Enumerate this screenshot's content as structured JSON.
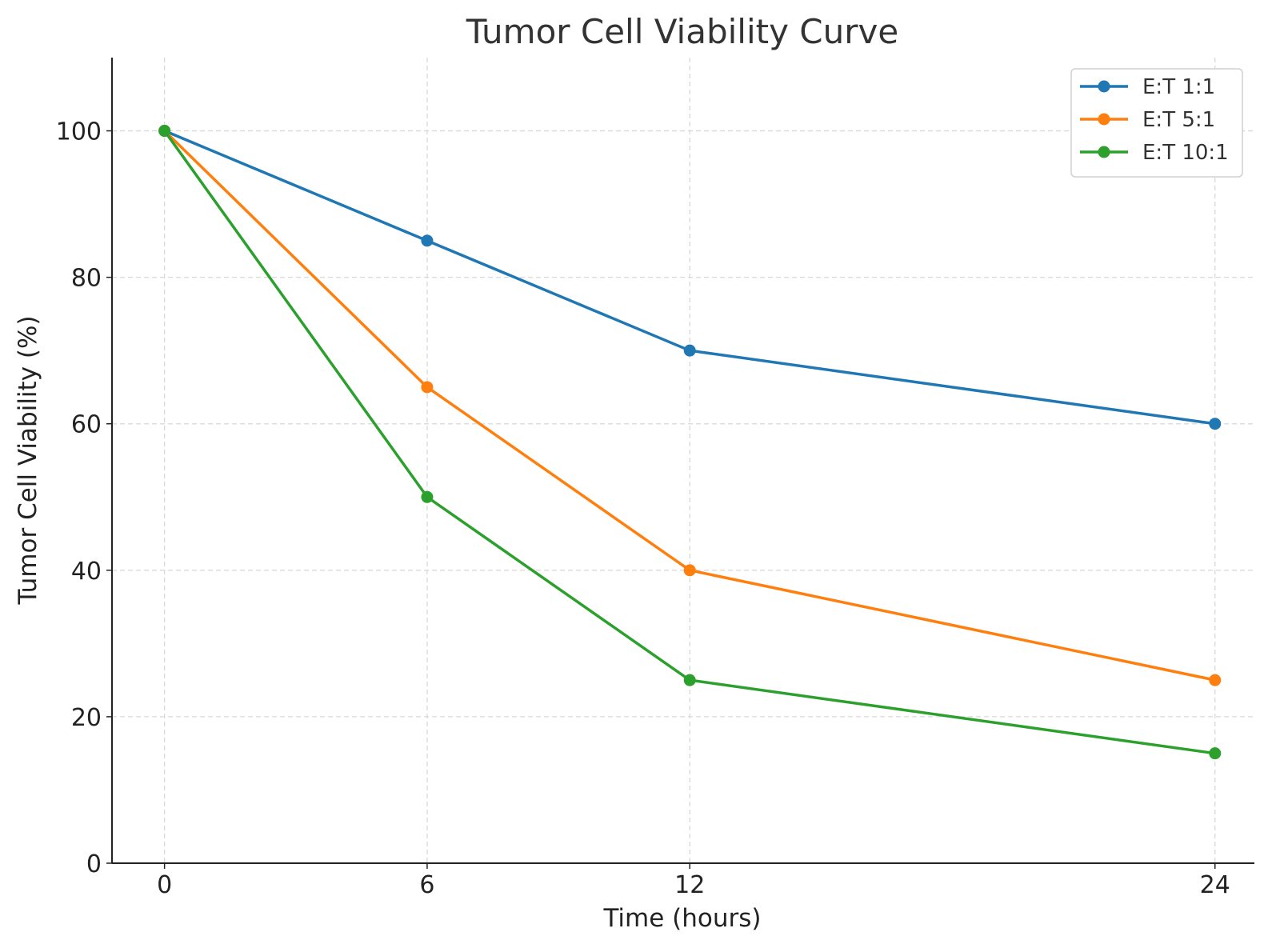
{
  "chart_data": {
    "type": "line",
    "title": "Tumor Cell Viability Curve",
    "xlabel": "Time (hours)",
    "ylabel": "Tumor Cell Viability (%)",
    "x": [
      0,
      6,
      12,
      24
    ],
    "xticks": [
      0,
      6,
      12,
      24
    ],
    "yticks": [
      0,
      20,
      40,
      60,
      80,
      100
    ],
    "xlim": [
      -1.2,
      24.9
    ],
    "ylim": [
      0,
      110
    ],
    "grid": true,
    "legend_position": "top-right",
    "series": [
      {
        "name": "E:T 1:1",
        "color": "#1f77b4",
        "values": [
          100,
          85,
          70,
          60
        ]
      },
      {
        "name": "E:T 5:1",
        "color": "#ff7f0e",
        "values": [
          100,
          65,
          40,
          25
        ]
      },
      {
        "name": "E:T 10:1",
        "color": "#2ca02c",
        "values": [
          100,
          50,
          25,
          15
        ]
      }
    ]
  }
}
